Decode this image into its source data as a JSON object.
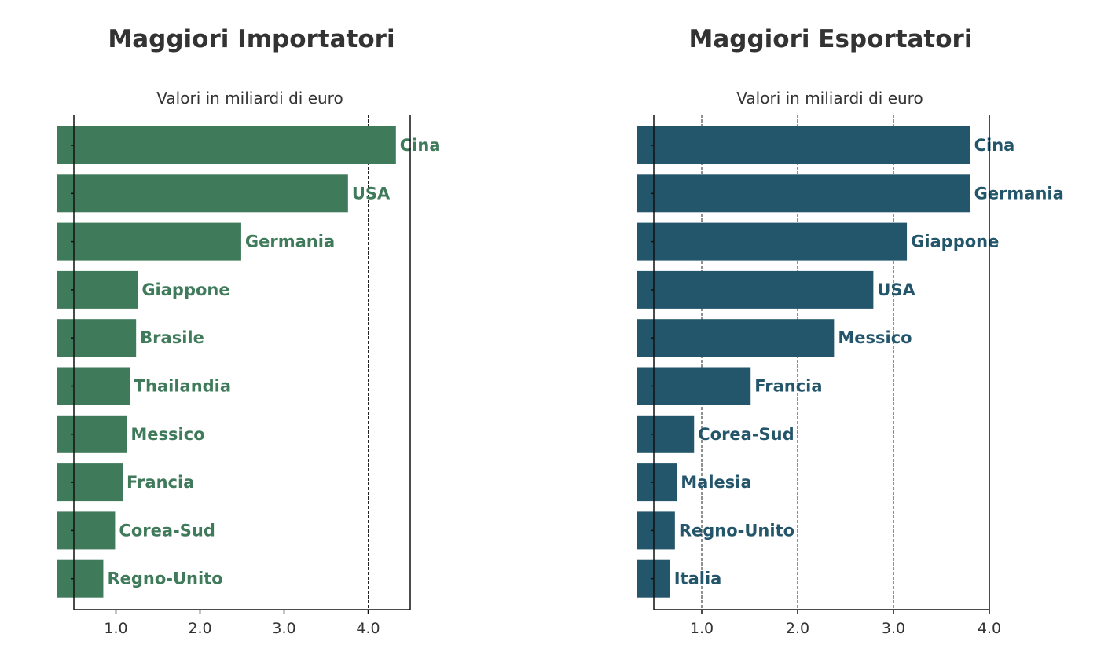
{
  "chart_data": [
    {
      "type": "bar",
      "orientation": "horizontal",
      "title": "Maggiori Importatori",
      "subtitle": "Valori in miliardi di euro",
      "color": "#3f7a5a",
      "xlim": [
        0.5,
        4.5
      ],
      "xticks": [
        1.0,
        2.0,
        3.0,
        4.0
      ],
      "xtick_labels": [
        "1.0",
        "2.0",
        "3.0",
        "4.0"
      ],
      "grid": true,
      "categories": [
        "Cina",
        "USA",
        "Germania",
        "Giappone",
        "Brasile",
        "Thailandia",
        "Messico",
        "Francia",
        "Corea-Sud",
        "Regno-Unito"
      ],
      "values": [
        4.33,
        3.76,
        2.49,
        1.26,
        1.24,
        1.17,
        1.13,
        1.08,
        0.99,
        0.85
      ]
    },
    {
      "type": "bar",
      "orientation": "horizontal",
      "title": "Maggiori Esportatori",
      "subtitle": "Valori in miliardi di euro",
      "color": "#24566b",
      "xlim": [
        0.5,
        4.0
      ],
      "xticks": [
        1.0,
        2.0,
        3.0,
        4.0
      ],
      "xtick_labels": [
        "1.0",
        "2.0",
        "3.0",
        "4.0"
      ],
      "grid": true,
      "categories": [
        "Cina",
        "Germania",
        "Giappone",
        "USA",
        "Messico",
        "Francia",
        "Corea-Sud",
        "Malesia",
        "Regno-Unito",
        "Italia"
      ],
      "values": [
        3.8,
        3.8,
        3.14,
        2.79,
        2.38,
        1.51,
        0.92,
        0.74,
        0.72,
        0.67
      ]
    }
  ]
}
